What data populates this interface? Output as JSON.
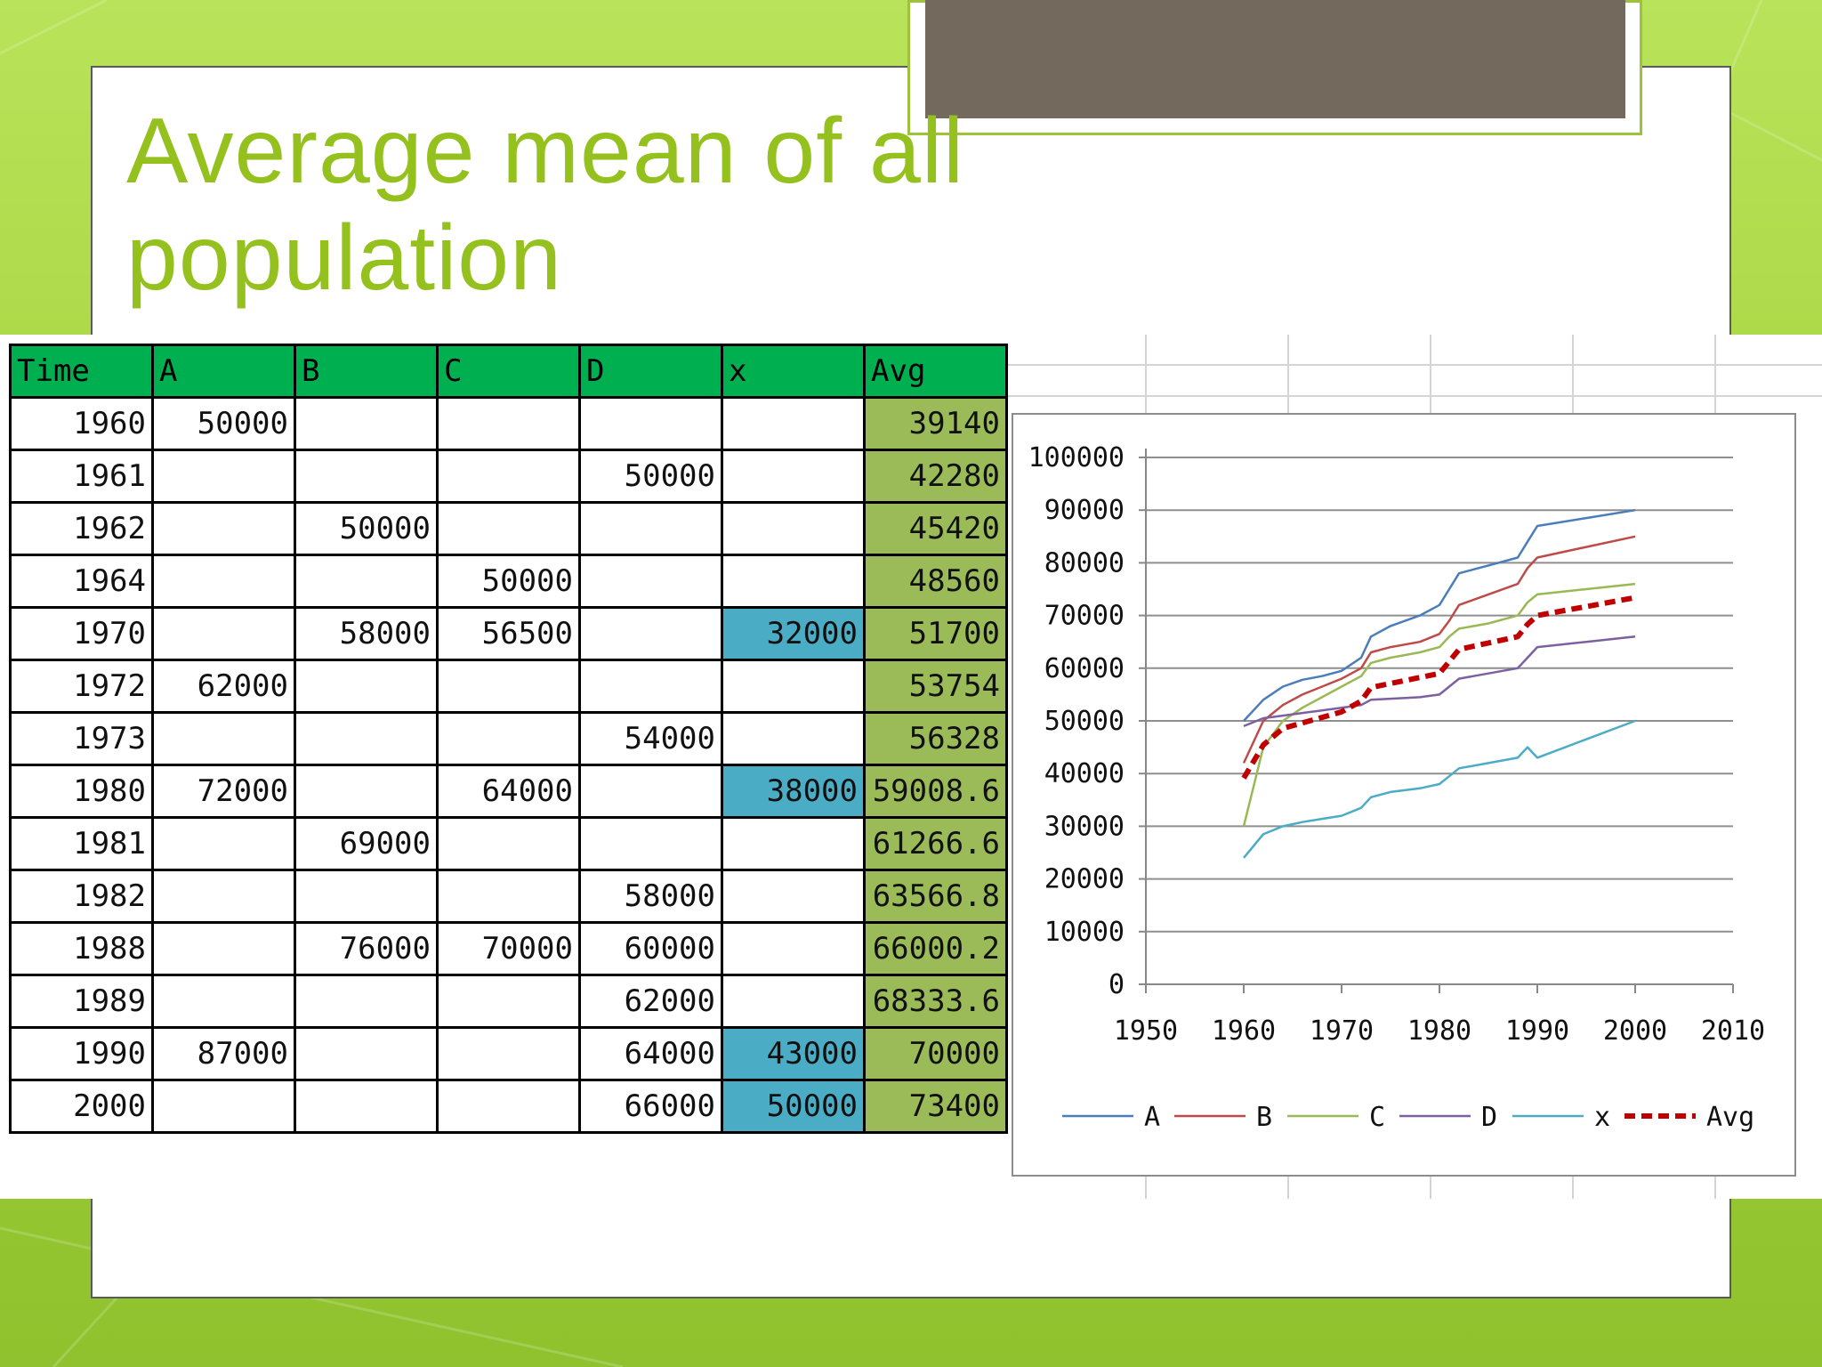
{
  "slide": {
    "title_line1": "Average mean of all",
    "title_line2": "population"
  },
  "table": {
    "headers": [
      "Time",
      "A",
      "B",
      "C",
      "D",
      "x",
      "Avg"
    ],
    "rows": [
      [
        "1960",
        "50000",
        "",
        "",
        "",
        "",
        "39140"
      ],
      [
        "1961",
        "",
        "",
        "",
        "50000",
        "",
        "42280"
      ],
      [
        "1962",
        "",
        "50000",
        "",
        "",
        "",
        "45420"
      ],
      [
        "1964",
        "",
        "",
        "50000",
        "",
        "",
        "48560"
      ],
      [
        "1970",
        "",
        "58000",
        "56500",
        "",
        "32000",
        "51700"
      ],
      [
        "1972",
        "62000",
        "",
        "",
        "",
        "",
        "53754"
      ],
      [
        "1973",
        "",
        "",
        "",
        "54000",
        "",
        "56328"
      ],
      [
        "1980",
        "72000",
        "",
        "64000",
        "",
        "38000",
        "59008.6"
      ],
      [
        "1981",
        "",
        "69000",
        "",
        "",
        "",
        "61266.6"
      ],
      [
        "1982",
        "",
        "",
        "",
        "58000",
        "",
        "63566.8"
      ],
      [
        "1988",
        "",
        "76000",
        "70000",
        "60000",
        "",
        "66000.2"
      ],
      [
        "1989",
        "",
        "",
        "",
        "62000",
        "",
        "68333.6"
      ],
      [
        "1990",
        "87000",
        "",
        "",
        "64000",
        "43000",
        "70000"
      ],
      [
        "2000",
        "",
        "",
        "",
        "66000",
        "50000",
        "73400"
      ]
    ],
    "highlight_color": "#4bacc6",
    "header_color": "#00b050",
    "avg_color": "#9bbb59"
  },
  "chart_data": {
    "type": "line",
    "title": "",
    "xlabel": "",
    "ylabel": "",
    "xlim": [
      1950,
      2010
    ],
    "ylim": [
      0,
      100000
    ],
    "xticks": [
      "1950",
      "1960",
      "1970",
      "1980",
      "1990",
      "2000",
      "2010"
    ],
    "yticks": [
      "0",
      "10000",
      "20000",
      "30000",
      "40000",
      "50000",
      "60000",
      "70000",
      "80000",
      "90000",
      "100000"
    ],
    "grid": true,
    "legend": "bottom",
    "series": [
      {
        "name": "A",
        "color": "#4a7ebb",
        "dashed": false,
        "x": [
          1960,
          1962,
          1964,
          1966,
          1968,
          1970,
          1972,
          1973,
          1975,
          1978,
          1980,
          1981,
          1982,
          1985,
          1988,
          1989,
          1990,
          1995,
          2000
        ],
        "y": [
          50000,
          54000,
          56500,
          57800,
          58500,
          59500,
          62000,
          66000,
          68000,
          70000,
          72000,
          75000,
          78000,
          79500,
          81000,
          84000,
          87000,
          88500,
          90000
        ]
      },
      {
        "name": "B",
        "color": "#be4b48",
        "dashed": false,
        "x": [
          1960,
          1962,
          1964,
          1966,
          1968,
          1970,
          1972,
          1973,
          1975,
          1978,
          1980,
          1981,
          1982,
          1985,
          1988,
          1989,
          1990,
          1995,
          2000
        ],
        "y": [
          42000,
          50000,
          53000,
          55000,
          56500,
          58000,
          60000,
          63000,
          64000,
          65000,
          66500,
          69000,
          72000,
          74000,
          76000,
          79000,
          81000,
          83000,
          85000
        ]
      },
      {
        "name": "C",
        "color": "#98b954",
        "dashed": false,
        "x": [
          1960,
          1962,
          1964,
          1966,
          1968,
          1970,
          1972,
          1973,
          1975,
          1978,
          1980,
          1981,
          1982,
          1985,
          1988,
          1989,
          1990,
          1995,
          2000
        ],
        "y": [
          30000,
          45000,
          50000,
          52500,
          54500,
          56500,
          58500,
          61000,
          62000,
          63000,
          64000,
          66000,
          67500,
          68500,
          70000,
          72500,
          74000,
          75000,
          76000
        ]
      },
      {
        "name": "D",
        "color": "#7d60a0",
        "dashed": false,
        "x": [
          1960,
          1962,
          1964,
          1966,
          1968,
          1970,
          1972,
          1973,
          1975,
          1978,
          1980,
          1981,
          1982,
          1985,
          1988,
          1989,
          1990,
          1995,
          2000
        ],
        "y": [
          49000,
          50500,
          51000,
          51500,
          52000,
          52500,
          53000,
          54000,
          54200,
          54500,
          55000,
          56500,
          58000,
          59000,
          60000,
          62000,
          64000,
          65000,
          66000
        ]
      },
      {
        "name": "x",
        "color": "#4bacc6",
        "dashed": false,
        "x": [
          1960,
          1962,
          1964,
          1966,
          1968,
          1970,
          1972,
          1973,
          1975,
          1978,
          1980,
          1981,
          1982,
          1985,
          1988,
          1989,
          1990,
          1995,
          2000
        ],
        "y": [
          24000,
          28500,
          30000,
          30800,
          31400,
          32000,
          33500,
          35500,
          36500,
          37200,
          38000,
          39500,
          41000,
          42000,
          43000,
          45000,
          43000,
          46500,
          50000
        ]
      },
      {
        "name": "Avg",
        "color": "#c00000",
        "dashed": true,
        "x": [
          1960,
          1961,
          1962,
          1964,
          1970,
          1972,
          1973,
          1980,
          1981,
          1982,
          1988,
          1989,
          1990,
          2000
        ],
        "y": [
          39140,
          42280,
          45420,
          48560,
          51700,
          53754,
          56328,
          59008.6,
          61266.6,
          63566.8,
          66000.2,
          68333.6,
          70000,
          73400
        ]
      }
    ]
  }
}
